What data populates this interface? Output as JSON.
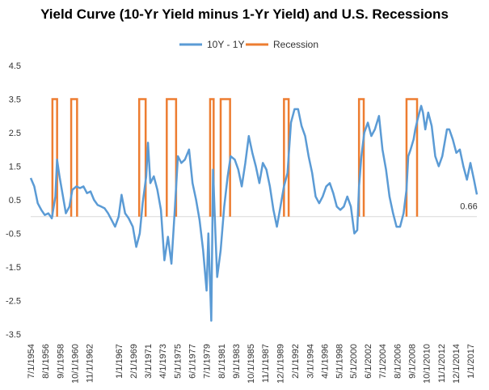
{
  "chart_data": {
    "type": "line",
    "title": "Yield Curve (10-Yr Yield minus 1-Yr Yield) and U.S. Recessions",
    "xlabel": "",
    "ylabel": "",
    "ylim": [
      -3.5,
      4.5
    ],
    "yticks": [
      4.5,
      3.5,
      2.5,
      1.5,
      0.5,
      -0.5,
      -1.5,
      -2.5,
      -3.5
    ],
    "xlim": [
      "1954-07-01",
      "2017-12-01"
    ],
    "xticks": [
      "7/1/1954",
      "8/1/1956",
      "9/1/1958",
      "10/1/1960",
      "11/1/1962",
      "1/1/1967",
      "2/1/1969",
      "3/1/1971",
      "4/1/1973",
      "5/1/1975",
      "6/1/1977",
      "7/1/1979",
      "8/1/1981",
      "9/1/1983",
      "10/1/1985",
      "11/1/1987",
      "12/1/1989",
      "2/1/1992",
      "3/1/1994",
      "4/1/1996",
      "5/1/1998",
      "5/1/2000",
      "6/1/2002",
      "7/1/2004",
      "8/1/2006",
      "9/1/2008",
      "10/1/2010",
      "11/1/2012",
      "12/1/2014",
      "1/1/2017"
    ],
    "legend": {
      "position": "top-center"
    },
    "grid": false,
    "annotation": {
      "text": "0.66",
      "x": "2017-12-01",
      "y": 0.66
    },
    "series": [
      {
        "name": "10Y - 1Y",
        "color": "#5B9BD5",
        "points": [
          [
            "1954-07-01",
            1.15
          ],
          [
            "1955-01-01",
            0.9
          ],
          [
            "1955-07-01",
            0.4
          ],
          [
            "1956-01-01",
            0.2
          ],
          [
            "1956-07-01",
            0.05
          ],
          [
            "1957-01-01",
            0.1
          ],
          [
            "1957-07-01",
            -0.05
          ],
          [
            "1958-01-01",
            0.6
          ],
          [
            "1958-04-01",
            1.7
          ],
          [
            "1958-08-01",
            1.2
          ],
          [
            "1959-01-01",
            0.7
          ],
          [
            "1959-07-01",
            0.1
          ],
          [
            "1960-01-01",
            0.3
          ],
          [
            "1960-06-01",
            0.8
          ],
          [
            "1961-01-01",
            0.9
          ],
          [
            "1961-07-01",
            0.85
          ],
          [
            "1962-01-01",
            0.9
          ],
          [
            "1962-07-01",
            0.7
          ],
          [
            "1963-01-01",
            0.75
          ],
          [
            "1963-07-01",
            0.5
          ],
          [
            "1964-01-01",
            0.35
          ],
          [
            "1964-07-01",
            0.3
          ],
          [
            "1965-01-01",
            0.25
          ],
          [
            "1965-07-01",
            0.1
          ],
          [
            "1966-01-01",
            -0.1
          ],
          [
            "1966-07-01",
            -0.3
          ],
          [
            "1967-01-01",
            0.0
          ],
          [
            "1967-06-01",
            0.65
          ],
          [
            "1967-12-01",
            0.1
          ],
          [
            "1968-06-01",
            -0.05
          ],
          [
            "1969-01-01",
            -0.3
          ],
          [
            "1969-07-01",
            -0.9
          ],
          [
            "1970-01-01",
            -0.5
          ],
          [
            "1970-06-01",
            0.4
          ],
          [
            "1970-12-01",
            1.2
          ],
          [
            "1971-03-01",
            2.2
          ],
          [
            "1971-07-01",
            1.0
          ],
          [
            "1972-01-01",
            1.2
          ],
          [
            "1972-07-01",
            0.8
          ],
          [
            "1973-01-01",
            0.2
          ],
          [
            "1973-07-01",
            -1.3
          ],
          [
            "1974-01-01",
            -0.6
          ],
          [
            "1974-07-01",
            -1.4
          ],
          [
            "1975-01-01",
            0.3
          ],
          [
            "1975-06-01",
            1.8
          ],
          [
            "1975-12-01",
            1.6
          ],
          [
            "1976-06-01",
            1.7
          ],
          [
            "1977-01-01",
            2.0
          ],
          [
            "1977-07-01",
            1.0
          ],
          [
            "1978-01-01",
            0.5
          ],
          [
            "1978-07-01",
            -0.1
          ],
          [
            "1979-01-01",
            -1.0
          ],
          [
            "1979-07-01",
            -2.2
          ],
          [
            "1979-10-01",
            -0.5
          ],
          [
            "1980-03-01",
            -3.1
          ],
          [
            "1980-06-01",
            1.4
          ],
          [
            "1980-10-01",
            -0.5
          ],
          [
            "1981-01-01",
            -1.8
          ],
          [
            "1981-07-01",
            -1.0
          ],
          [
            "1982-01-01",
            0.3
          ],
          [
            "1982-07-01",
            1.2
          ],
          [
            "1982-12-01",
            1.8
          ],
          [
            "1983-07-01",
            1.7
          ],
          [
            "1984-01-01",
            1.4
          ],
          [
            "1984-07-01",
            0.9
          ],
          [
            "1985-01-01",
            1.6
          ],
          [
            "1985-07-01",
            2.4
          ],
          [
            "1986-01-01",
            1.9
          ],
          [
            "1986-07-01",
            1.5
          ],
          [
            "1987-01-01",
            1.0
          ],
          [
            "1987-07-01",
            1.6
          ],
          [
            "1988-01-01",
            1.4
          ],
          [
            "1988-07-01",
            0.9
          ],
          [
            "1989-01-01",
            0.2
          ],
          [
            "1989-07-01",
            -0.3
          ],
          [
            "1990-01-01",
            0.3
          ],
          [
            "1990-07-01",
            0.9
          ],
          [
            "1991-01-01",
            1.3
          ],
          [
            "1991-07-01",
            2.8
          ],
          [
            "1992-01-01",
            3.2
          ],
          [
            "1992-07-01",
            3.2
          ],
          [
            "1993-01-01",
            2.7
          ],
          [
            "1993-07-01",
            2.4
          ],
          [
            "1994-01-01",
            1.8
          ],
          [
            "1994-07-01",
            1.3
          ],
          [
            "1995-01-01",
            0.6
          ],
          [
            "1995-07-01",
            0.4
          ],
          [
            "1996-01-01",
            0.6
          ],
          [
            "1996-07-01",
            0.9
          ],
          [
            "1997-01-01",
            1.0
          ],
          [
            "1997-07-01",
            0.7
          ],
          [
            "1998-01-01",
            0.3
          ],
          [
            "1998-07-01",
            0.2
          ],
          [
            "1999-01-01",
            0.3
          ],
          [
            "1999-07-01",
            0.6
          ],
          [
            "2000-01-01",
            0.3
          ],
          [
            "2000-07-01",
            -0.5
          ],
          [
            "2000-12-01",
            -0.4
          ],
          [
            "2001-03-01",
            0.9
          ],
          [
            "2001-07-01",
            1.8
          ],
          [
            "2001-12-01",
            2.5
          ],
          [
            "2002-06-01",
            2.8
          ],
          [
            "2002-12-01",
            2.4
          ],
          [
            "2003-06-01",
            2.6
          ],
          [
            "2004-01-01",
            3.0
          ],
          [
            "2004-07-01",
            2.0
          ],
          [
            "2005-01-01",
            1.4
          ],
          [
            "2005-07-01",
            0.6
          ],
          [
            "2006-01-01",
            0.1
          ],
          [
            "2006-07-01",
            -0.3
          ],
          [
            "2007-01-01",
            -0.3
          ],
          [
            "2007-07-01",
            0.1
          ],
          [
            "2007-12-01",
            0.8
          ],
          [
            "2008-03-01",
            1.8
          ],
          [
            "2008-07-01",
            2.0
          ],
          [
            "2008-12-01",
            2.3
          ],
          [
            "2009-03-01",
            2.6
          ],
          [
            "2009-07-01",
            2.9
          ],
          [
            "2010-01-01",
            3.3
          ],
          [
            "2010-04-01",
            3.1
          ],
          [
            "2010-08-01",
            2.6
          ],
          [
            "2011-01-01",
            3.1
          ],
          [
            "2011-07-01",
            2.7
          ],
          [
            "2012-01-01",
            1.8
          ],
          [
            "2012-07-01",
            1.5
          ],
          [
            "2013-01-01",
            1.8
          ],
          [
            "2013-09-01",
            2.6
          ],
          [
            "2014-01-01",
            2.6
          ],
          [
            "2014-07-01",
            2.3
          ],
          [
            "2015-01-01",
            1.9
          ],
          [
            "2015-07-01",
            2.0
          ],
          [
            "2016-01-01",
            1.5
          ],
          [
            "2016-07-01",
            1.1
          ],
          [
            "2017-01-01",
            1.6
          ],
          [
            "2017-07-01",
            1.1
          ],
          [
            "2017-12-01",
            0.66
          ]
        ]
      },
      {
        "name": "Recession",
        "color": "#ED7D31",
        "top": 3.5,
        "base": 0,
        "periods": [
          [
            "1957-08-01",
            "1958-04-01"
          ],
          [
            "1960-04-01",
            "1961-02-01"
          ],
          [
            "1969-12-01",
            "1970-11-01"
          ],
          [
            "1973-11-01",
            "1975-03-01"
          ],
          [
            "1980-01-01",
            "1980-07-01"
          ],
          [
            "1981-07-01",
            "1982-11-01"
          ],
          [
            "1990-07-01",
            "1991-03-01"
          ],
          [
            "2001-03-01",
            "2001-11-01"
          ],
          [
            "2007-12-01",
            "2009-06-01"
          ]
        ]
      }
    ]
  }
}
